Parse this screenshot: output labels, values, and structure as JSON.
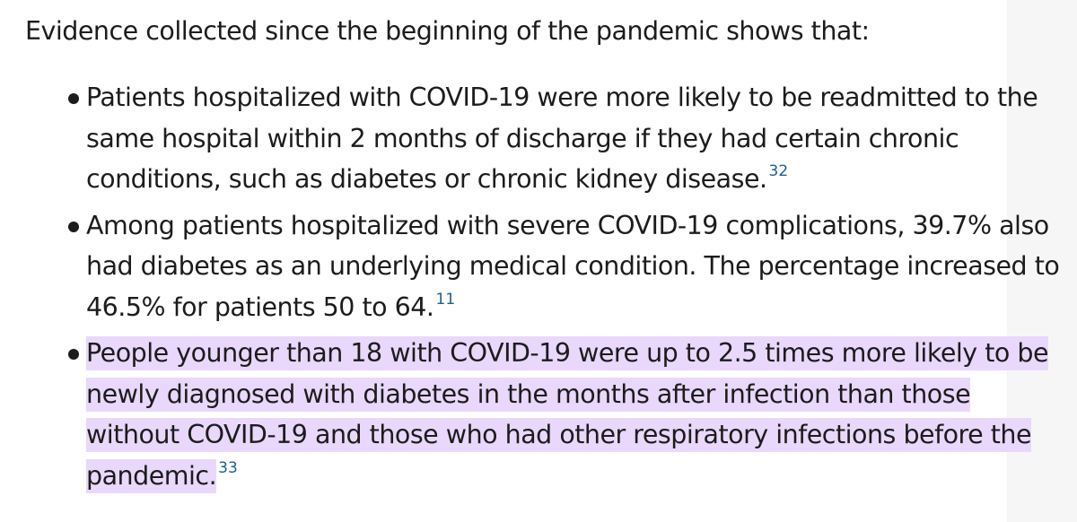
{
  "intro": "Evidence collected since the beginning of the pandemic shows that:",
  "facts": [
    {
      "lines": [
        "Patients hospitalized with COVID-19 were more likely to be readmitted to the",
        "same hospital within 2 months of discharge if they had certain chronic",
        "conditions, such as diabetes or chronic kidney disease."
      ],
      "ref": "32",
      "highlighted": false
    },
    {
      "lines": [
        "Among patients hospitalized with severe COVID-19 complications, 39.7% also",
        "had diabetes as an underlying medical condition. The percentage increased to",
        "46.5% for patients 50 to 64."
      ],
      "ref": "11",
      "highlighted": false
    },
    {
      "lines": [
        "People younger than 18 with COVID-19 were up to 2.5 times more likely to be",
        "newly diagnosed with diabetes in the months after infection than those",
        "without COVID-19 and those who had other respiratory infections before the",
        "pandemic."
      ],
      "ref": "33",
      "highlighted": true
    }
  ],
  "colors": {
    "text": "#1c1c1c",
    "reference_link": "#1a5f8f",
    "highlight": "#e9d8fb"
  }
}
